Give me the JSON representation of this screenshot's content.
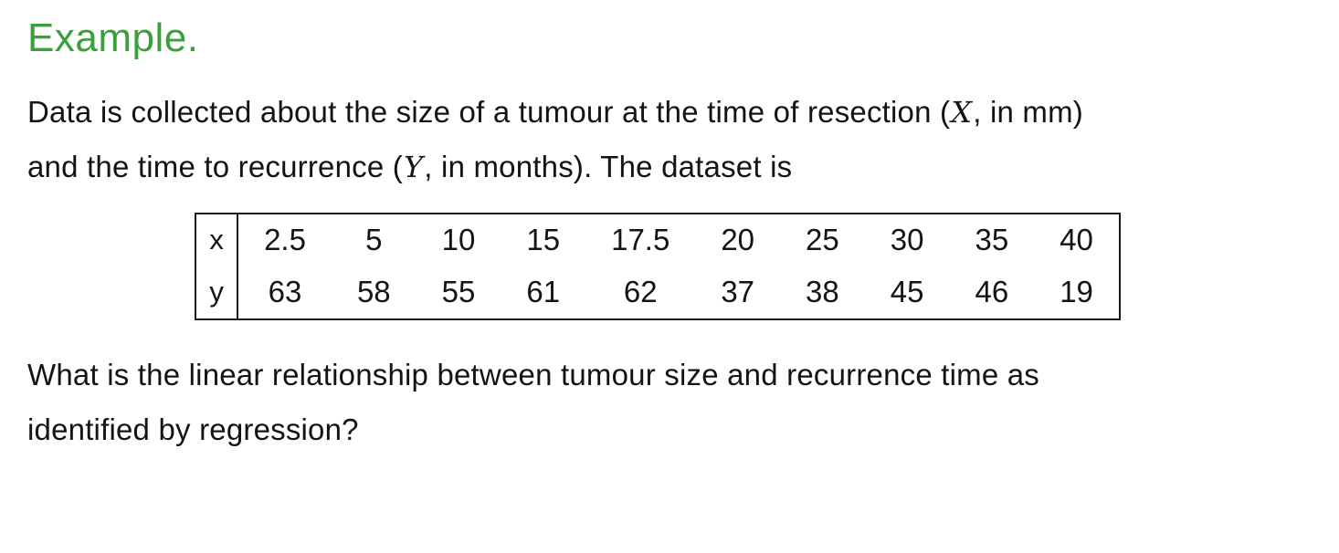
{
  "heading": "Example.",
  "colors": {
    "heading_green": "#3aa03a",
    "text": "#141414",
    "background": "#ffffff",
    "table_border": "#1a1a1a"
  },
  "intro": {
    "line1_pre": "Data is collected about the size of a tumour at the time of resection (",
    "line1_var": "X",
    "line1_post": ", in mm)",
    "line2_pre": "and the time to recurrence (",
    "line2_var": "Y",
    "line2_post": ", in months). The dataset is"
  },
  "table": {
    "rows": [
      {
        "label": "x",
        "values": [
          "2.5",
          "5",
          "10",
          "15",
          "17.5",
          "20",
          "25",
          "30",
          "35",
          "40"
        ]
      },
      {
        "label": "y",
        "values": [
          "63",
          "58",
          "55",
          "61",
          "62",
          "37",
          "38",
          "45",
          "46",
          "19"
        ]
      }
    ]
  },
  "question": {
    "line1": "What is the linear relationship between tumour size and recurrence time as",
    "line2": "identified by regression?"
  }
}
